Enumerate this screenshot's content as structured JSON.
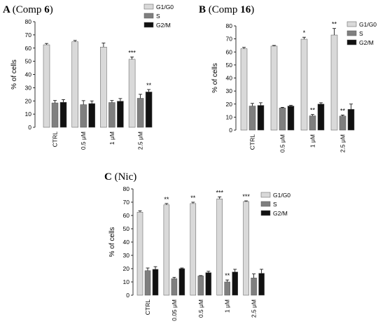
{
  "chart_data": [
    {
      "type": "bar",
      "panel_letter": "A",
      "title_prefix": "(Comp ",
      "title_bold": "6",
      "title_suffix": ")",
      "ylabel": "% of cells",
      "ylim": [
        0,
        80
      ],
      "yticks": [
        0,
        10,
        20,
        30,
        40,
        50,
        60,
        70,
        80
      ],
      "grid": false,
      "legend_position": "top-right",
      "categories": [
        "CTRL",
        "0.5 μM",
        "1 μM",
        "2.5 μM"
      ],
      "series": [
        {
          "name": "G1/G0",
          "color": "#d9d9d9",
          "values": [
            62.5,
            64.8,
            60.8,
            51.5
          ],
          "errors": [
            1.0,
            1.0,
            3.0,
            1.8
          ],
          "sig": [
            "",
            "",
            "",
            "***"
          ]
        },
        {
          "name": "S",
          "color": "#7f7f7f",
          "values": [
            18.5,
            17.2,
            18.8,
            22.0
          ],
          "errors": [
            1.8,
            3.0,
            1.5,
            3.0
          ],
          "sig": [
            "",
            "",
            "",
            ""
          ]
        },
        {
          "name": "G2/M",
          "color": "#111111",
          "values": [
            19.0,
            18.0,
            19.8,
            26.8
          ],
          "errors": [
            2.0,
            2.0,
            2.0,
            1.8
          ],
          "sig": [
            "",
            "",
            "",
            "**"
          ]
        }
      ]
    },
    {
      "type": "bar",
      "panel_letter": "B",
      "title_prefix": "(Comp ",
      "title_bold": "16",
      "title_suffix": ")",
      "ylabel": "% of cells",
      "ylim": [
        0,
        80
      ],
      "yticks": [
        0,
        10,
        20,
        30,
        40,
        50,
        60,
        70,
        80
      ],
      "grid": false,
      "legend_position": "top-right",
      "categories": [
        "CTRL",
        "0.5 μM",
        "1 μM",
        "2.5 μM"
      ],
      "series": [
        {
          "name": "G1/G0",
          "color": "#d9d9d9",
          "values": [
            62.5,
            64.5,
            69.8,
            73.0
          ],
          "errors": [
            1.0,
            0.5,
            1.5,
            5.0
          ],
          "sig": [
            "",
            "",
            "*",
            "**"
          ]
        },
        {
          "name": "S",
          "color": "#7f7f7f",
          "values": [
            18.5,
            17.0,
            11.0,
            10.8
          ],
          "errors": [
            2.0,
            0.5,
            1.0,
            0.8
          ],
          "sig": [
            "",
            "",
            "**",
            "**"
          ]
        },
        {
          "name": "G2/M",
          "color": "#111111",
          "values": [
            19.0,
            18.5,
            20.0,
            16.0
          ],
          "errors": [
            2.0,
            0.5,
            1.0,
            4.0
          ],
          "sig": [
            "",
            "",
            "",
            ""
          ]
        }
      ]
    },
    {
      "type": "bar",
      "panel_letter": "C",
      "title_prefix": "(Nic)",
      "title_bold": "",
      "title_suffix": "",
      "ylabel": "% of cells",
      "ylim": [
        0,
        80
      ],
      "yticks": [
        0,
        10,
        20,
        30,
        40,
        50,
        60,
        70,
        80
      ],
      "grid": false,
      "legend_position": "top-right",
      "categories": [
        "CTRL",
        "0.05 μM",
        "0.5 μM",
        "1 μM",
        "2.5 μM"
      ],
      "series": [
        {
          "name": "G1/G0",
          "color": "#d9d9d9",
          "values": [
            62.5,
            68.0,
            69.0,
            72.5,
            70.5
          ],
          "errors": [
            1.0,
            1.0,
            1.0,
            1.5,
            0.5
          ],
          "sig": [
            "",
            "**",
            "**",
            "***",
            "***"
          ]
        },
        {
          "name": "S",
          "color": "#7f7f7f",
          "values": [
            18.5,
            12.5,
            14.5,
            10.0,
            13.0
          ],
          "errors": [
            2.0,
            1.0,
            0.3,
            1.5,
            3.0
          ],
          "sig": [
            "",
            "",
            "",
            "**",
            ""
          ]
        },
        {
          "name": "G2/M",
          "color": "#111111",
          "values": [
            19.5,
            20.0,
            17.0,
            17.5,
            16.5
          ],
          "errors": [
            2.0,
            0.5,
            1.0,
            2.0,
            3.0
          ],
          "sig": [
            "",
            "",
            "",
            "",
            ""
          ]
        }
      ]
    }
  ]
}
